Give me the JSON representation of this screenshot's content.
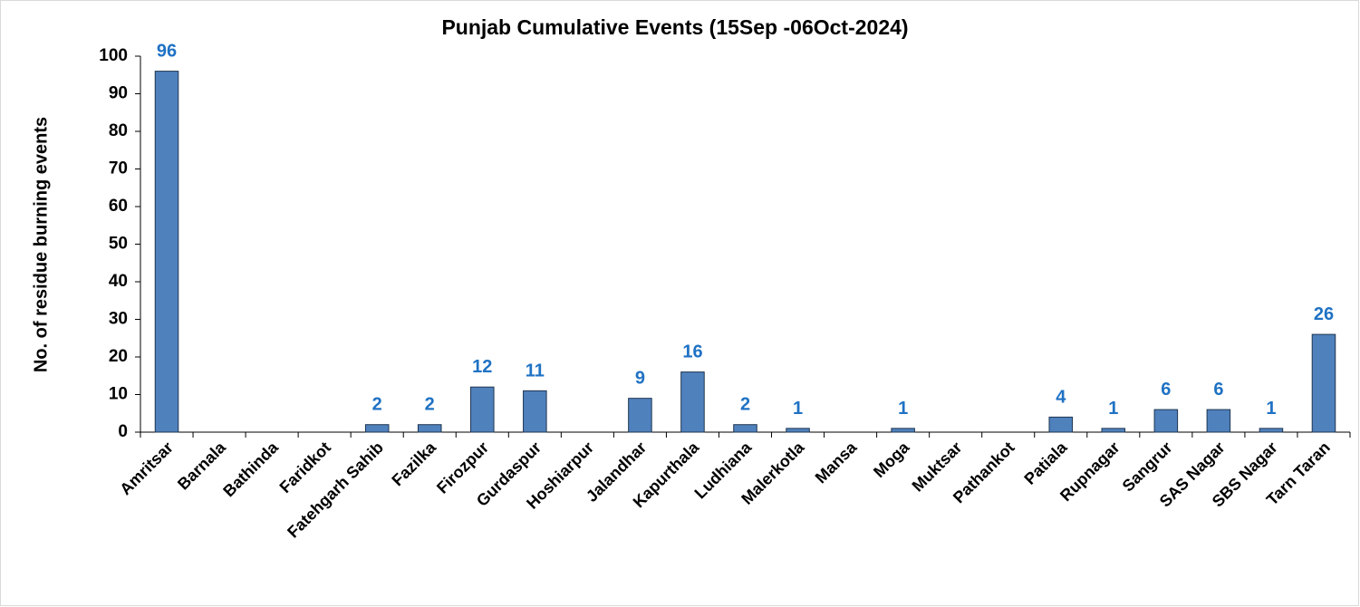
{
  "chart_data": {
    "type": "bar",
    "title": "Punjab Cumulative Events (15Sep -06Oct-2024)",
    "y_label": "No. of residue burning events",
    "categories": [
      "Amritsar",
      "Barnala",
      "Bathinda",
      "Faridkot",
      "Fatehgarh Sahib",
      "Fazilka",
      "Firozpur",
      "Gurdaspur",
      "Hoshiarpur",
      "Jalandhar",
      "Kapurthala",
      "Ludhiana",
      "Malerkotla",
      "Mansa",
      "Moga",
      "Muktsar",
      "Pathankot",
      "Patiala",
      "Rupnagar",
      "Sangrur",
      "SAS Nagar",
      "SBS Nagar",
      "Tarn Taran"
    ],
    "values": [
      96,
      0,
      0,
      0,
      2,
      2,
      12,
      11,
      0,
      9,
      16,
      2,
      1,
      0,
      1,
      0,
      0,
      4,
      1,
      6,
      6,
      1,
      26
    ],
    "value_labels": [
      "96",
      null,
      null,
      null,
      "2",
      "2",
      "12",
      "11",
      null,
      "9",
      "16",
      "2",
      "1",
      null,
      "1",
      null,
      null,
      "4",
      "1",
      "6",
      "6",
      "1",
      "26"
    ],
    "color": "#4f81bd",
    "ylim": [
      0,
      100
    ],
    "yticks": [
      0,
      10,
      20,
      30,
      40,
      50,
      60,
      70,
      80,
      90,
      100
    ],
    "grid": false
  }
}
